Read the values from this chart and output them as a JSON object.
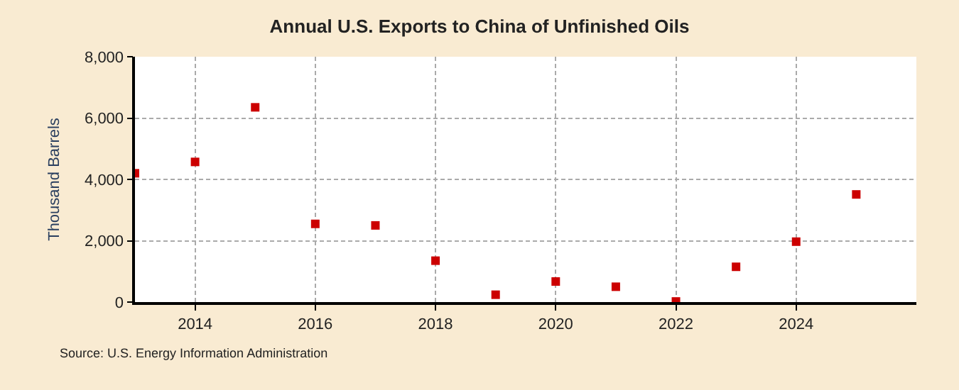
{
  "chart_data": {
    "type": "scatter",
    "title": "Annual U.S. Exports to China of Unfinished Oils",
    "ylabel": "Thousand Barrels",
    "x": [
      2013,
      2014,
      2015,
      2016,
      2017,
      2018,
      2019,
      2020,
      2021,
      2022,
      2023,
      2024,
      2025
    ],
    "series": [
      {
        "color": "#cc0000",
        "values": [
          4200,
          4570,
          6350,
          2550,
          2500,
          1350,
          240,
          670,
          500,
          20,
          1150,
          1970,
          3510
        ]
      }
    ],
    "marker": "square",
    "grid": true,
    "xlim": [
      2013,
      2026
    ],
    "xticks": [
      2014,
      2016,
      2018,
      2020,
      2022,
      2024
    ],
    "ylim": [
      0,
      8000
    ],
    "yticks": [
      {
        "value": 0,
        "label": "0"
      },
      {
        "value": 2000,
        "label": "2,000"
      },
      {
        "value": 4000,
        "label": "4,000"
      },
      {
        "value": 6000,
        "label": "6,000"
      },
      {
        "value": 8000,
        "label": "8,000"
      }
    ],
    "annotations": [
      "Source: U.S. Energy Information Administration"
    ]
  }
}
